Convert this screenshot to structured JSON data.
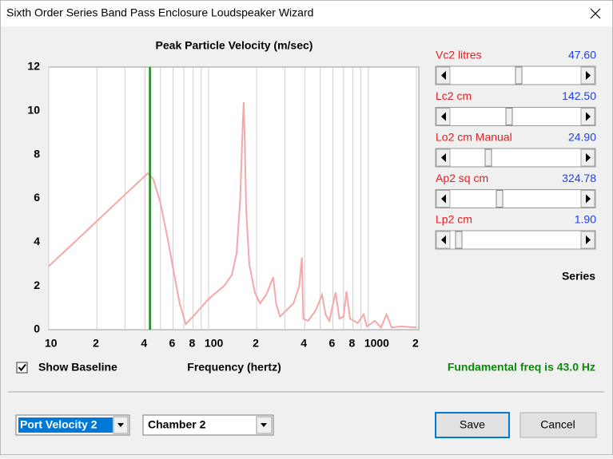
{
  "window": {
    "title": "Sixth Order Series Band Pass Enclosure Loudspeaker Wizard"
  },
  "chart_data": {
    "type": "line",
    "title": "Peak Particle Velocity (m/sec)",
    "x_label": "Frequency (hertz)",
    "xlim": [
      10,
      2000
    ],
    "ylim": [
      0,
      12
    ],
    "x_log": true,
    "grid": true,
    "yticks": [
      0,
      2,
      4,
      6,
      8,
      10,
      12
    ],
    "xticks": [
      10,
      {
        "value": 20,
        "label": "2"
      },
      {
        "value": 40,
        "label": "4"
      },
      {
        "value": 60,
        "label": "6"
      },
      {
        "value": 80,
        "label": "8"
      },
      100,
      {
        "value": 200,
        "label": "2"
      },
      {
        "value": 400,
        "label": "4"
      },
      {
        "value": 600,
        "label": "6"
      },
      {
        "value": 800,
        "label": "8"
      },
      1000,
      {
        "value": 2000,
        "label": "2"
      }
    ],
    "x_minor_grid": [
      30,
      50,
      70,
      90,
      300,
      500,
      700,
      900
    ],
    "marker_x": 43,
    "marker_color": "#1a8a1a",
    "series": [
      {
        "color": "#f4a8a8",
        "x": [
          10,
          15,
          20,
          30,
          41.7,
          45,
          50,
          55,
          60,
          66,
          72,
          80,
          100,
          125,
          140,
          150,
          158,
          163,
          166,
          168,
          172,
          180,
          195,
          210,
          230,
          254,
          265,
          280,
          340,
          370,
          384,
          392,
          420,
          470,
          514,
          540,
          570,
          624,
          660,
          700,
          730,
          770,
          860,
          935,
          980,
          1100,
          1200,
          1300,
          1400,
          1600,
          2000
        ],
        "values": [
          2.9,
          4.1,
          4.96,
          6.17,
          7.15,
          6.9,
          5.8,
          4.3,
          2.8,
          1.2,
          0.25,
          0.6,
          1.4,
          2.0,
          2.5,
          3.5,
          6,
          9,
          10.4,
          9,
          5.5,
          3,
          1.7,
          1.2,
          1.6,
          2.4,
          1.2,
          0.6,
          1.2,
          2.0,
          3.3,
          0.5,
          0.4,
          0.9,
          1.6,
          0.7,
          0.4,
          1.7,
          0.5,
          0.6,
          1.75,
          0.5,
          0.3,
          0.7,
          0.15,
          0.4,
          0.1,
          0.7,
          0.1,
          0.15,
          0.1
        ]
      }
    ]
  },
  "sliders": [
    {
      "label": "Vc2 litres",
      "value": "47.60"
    },
    {
      "label": "Lc2 cm",
      "value": "142.50"
    },
    {
      "label": "Lo2 cm Manual",
      "value": "24.90"
    },
    {
      "label": "Ap2 sq cm",
      "value": "324.78"
    },
    {
      "label": "Lp2 cm",
      "value": "1.90"
    }
  ],
  "series_label": "Series",
  "checkbox_label": "Show Baseline",
  "fundamental": "Fundamental freq is 43.0 Hz",
  "dropdowns": [
    "Port Velocity 2",
    "Chamber 2"
  ],
  "buttons": [
    "Save",
    "Cancel"
  ]
}
